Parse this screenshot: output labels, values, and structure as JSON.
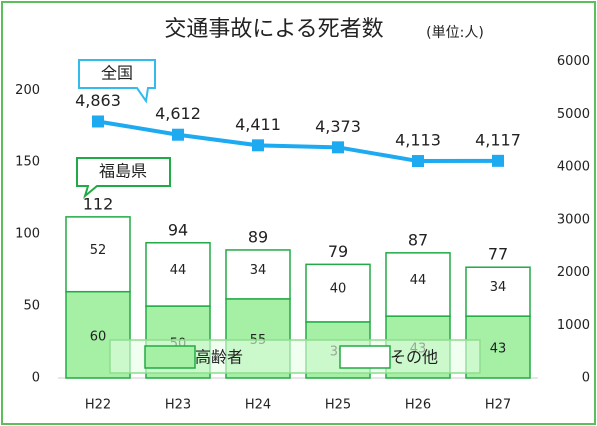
{
  "chart_data": {
    "type": "bar",
    "title": "交通事故による死者数",
    "subtitle": "(単位:人)",
    "categories": [
      "H22",
      "H23",
      "H24",
      "H25",
      "H26",
      "H27"
    ],
    "ylim": [
      0,
      220
    ],
    "yticks": [
      0,
      50,
      100,
      150,
      200
    ],
    "y2lim": [
      0,
      6000
    ],
    "y2ticks": [
      0,
      1000,
      2000,
      3000,
      4000,
      5000,
      6000
    ],
    "stack_name": "福島県",
    "totals": [
      112,
      94,
      89,
      79,
      87,
      77
    ],
    "legend": "bottom",
    "series": [
      {
        "name": "高齢者",
        "color": "#a6f0a6",
        "values": [
          60,
          50,
          55,
          39,
          43,
          43
        ]
      },
      {
        "name": "その他",
        "color": "#ffffff",
        "values": [
          52,
          44,
          34,
          40,
          44,
          34
        ]
      },
      {
        "name": "全国",
        "type": "line",
        "axis": "y2",
        "color": "#1eaaf0",
        "values": [
          4863,
          4612,
          4411,
          4373,
          4113,
          4117
        ],
        "value_labels": [
          "4,863",
          "4,612",
          "4,411",
          "4,373",
          "4,113",
          "4,117"
        ]
      }
    ]
  }
}
